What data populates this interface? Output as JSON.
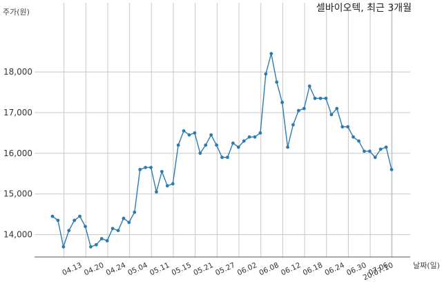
{
  "chart_data": {
    "type": "line",
    "title": "셀바이오텍, 최근 3개월",
    "xlabel": "날짜(일)",
    "ylabel": "주가(원)",
    "ylim": [
      13450,
      19700
    ],
    "yticks": [
      14000,
      15000,
      16000,
      17000,
      18000
    ],
    "ytick_labels": [
      "14,000",
      "15,000",
      "16,000",
      "17,000",
      "18,000"
    ],
    "grid": true,
    "color": "#2b7bb0",
    "x_tick_labels": [
      "04.13",
      "04.20",
      "04.24",
      "05.04",
      "05.11",
      "05.15",
      "05.21",
      "05.27",
      "06.02",
      "06.08",
      "06.12",
      "06.18",
      "06.24",
      "06.30",
      "07.06",
      "20.07.10"
    ],
    "x_tick_index": [
      3,
      7,
      11,
      15,
      19,
      23,
      27,
      31,
      35,
      39,
      43,
      47,
      51,
      55,
      59,
      62
    ],
    "series": [
      {
        "values": [
          14450,
          14350,
          13700,
          14100,
          14350,
          14450,
          14200,
          13700,
          13750,
          13900,
          13850,
          14150,
          14100,
          14400,
          14300,
          14550,
          15600,
          15650,
          15650,
          15050,
          15550,
          15200,
          15250,
          16200,
          16550,
          16450,
          16500,
          16000,
          16200,
          16450,
          16200,
          15900,
          15900,
          16250,
          16150,
          16300,
          16400,
          16400,
          16500,
          17950,
          18450,
          17750,
          17250,
          16150,
          16700,
          17050,
          17100,
          17650,
          17350,
          17350,
          17350,
          16950,
          17100,
          16650,
          16650,
          16400,
          16300,
          16050,
          16050,
          15900,
          16100,
          16150,
          15600
        ]
      }
    ]
  }
}
